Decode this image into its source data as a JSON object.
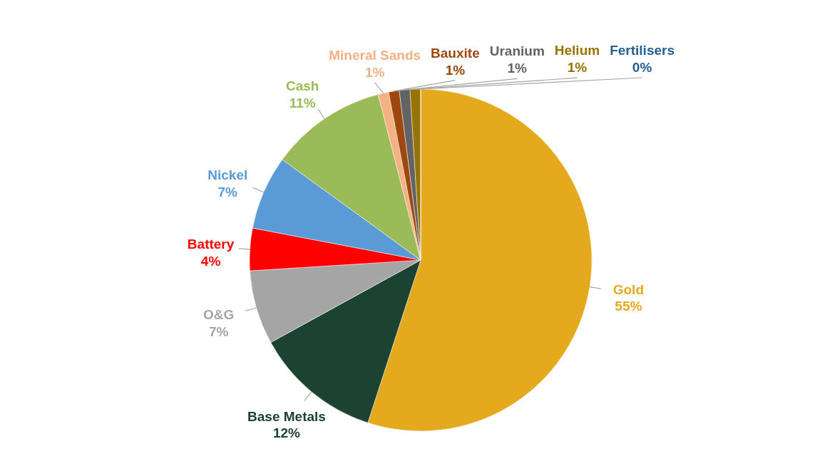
{
  "chart_data": {
    "type": "pie",
    "categories": [
      "Gold",
      "Base Metals",
      "O&G",
      "Battery",
      "Nickel",
      "Cash",
      "Mineral Sands",
      "Bauxite",
      "Uranium",
      "Helium",
      "Fertilisers"
    ],
    "values": [
      55,
      12,
      7,
      4,
      7,
      11,
      1,
      1,
      1,
      1,
      0
    ],
    "colors": [
      "#e5a91e",
      "#1c4332",
      "#a5a5a5",
      "#ff0000",
      "#5b9bd5",
      "#9bbb59",
      "#f4b183",
      "#9e480e",
      "#636363",
      "#997300",
      "#255e91"
    ],
    "value_labels": [
      "55%",
      "12%",
      "7%",
      "4%",
      "7%",
      "11%",
      "1%",
      "1%",
      "1%",
      "1%",
      "0%"
    ]
  }
}
